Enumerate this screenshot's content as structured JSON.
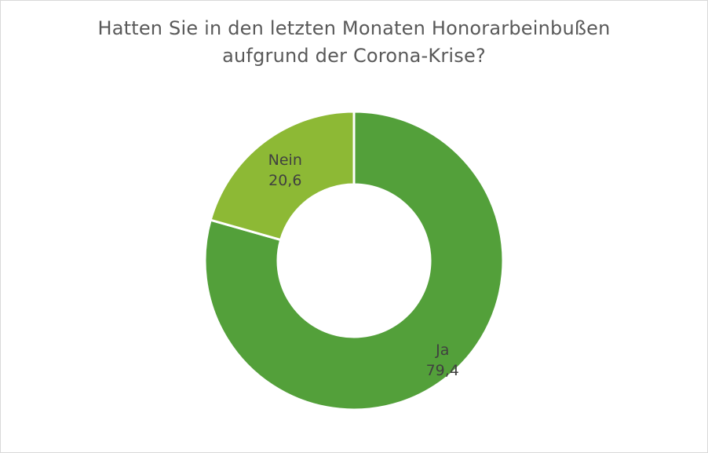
{
  "chart_data": {
    "type": "pie",
    "title_line1": "Hatten Sie in den letzten Monaten Honorarbeinbußen",
    "title_line2": "aufgrund der Corona-Krise?",
    "donut": true,
    "slices": [
      {
        "label": "Ja",
        "value": 79.4,
        "value_text": "79,4",
        "color": "#53a03a"
      },
      {
        "label": "Nein",
        "value": 20.6,
        "value_text": "20,6",
        "color": "#8db935"
      }
    ],
    "start_angle_deg": 0,
    "direction": "clockwise",
    "legend": "none",
    "separator_color": "#ffffff"
  }
}
